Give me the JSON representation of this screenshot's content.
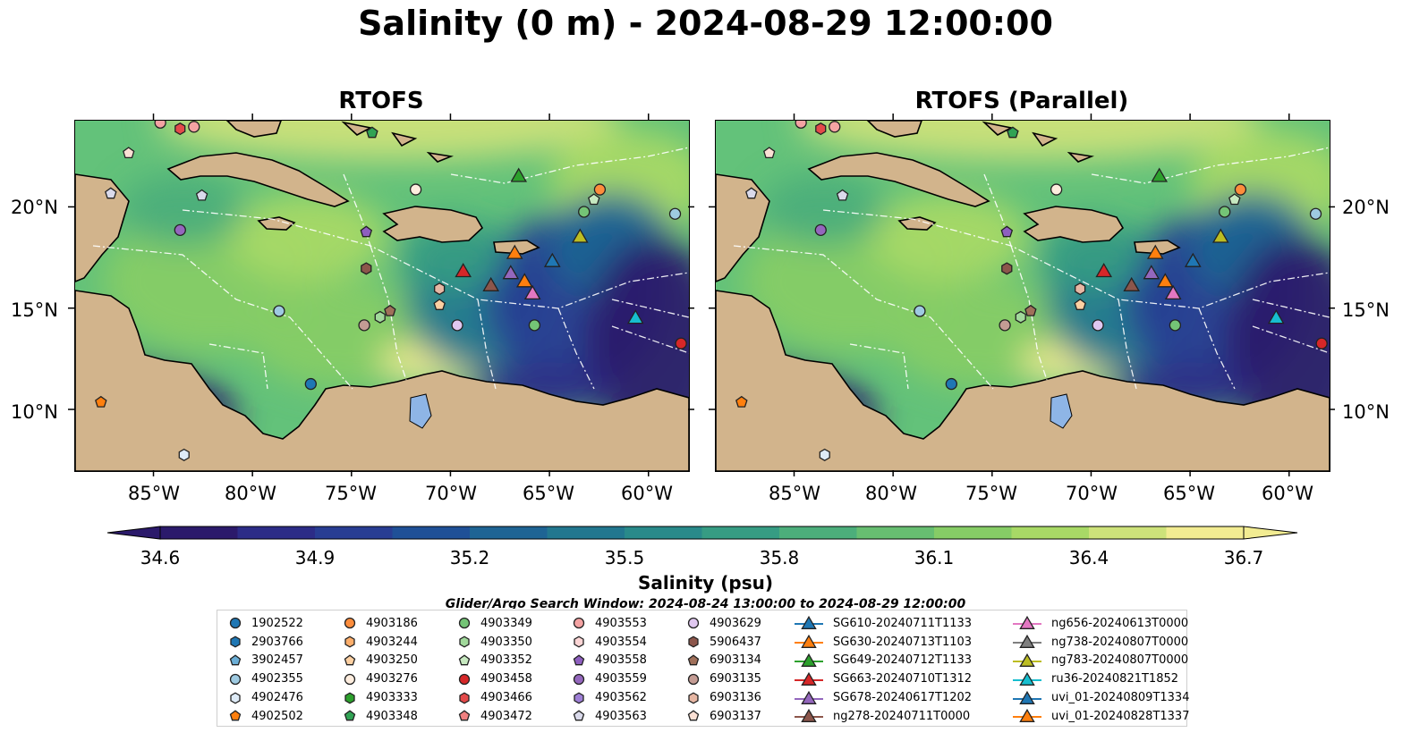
{
  "figure": {
    "title": "Salinity (0 m) - 2024-08-29 12:00:00",
    "panels": [
      {
        "title": "RTOFS"
      },
      {
        "title": "RTOFS (Parallel)"
      }
    ],
    "lon_labels": [
      "85°W",
      "80°W",
      "75°W",
      "70°W",
      "65°W",
      "60°W"
    ],
    "lat_labels": [
      "20°N",
      "15°N",
      "10°N"
    ],
    "extent": {
      "lon_min": -89,
      "lon_max": -58,
      "lat_min": 7,
      "lat_max": 24.3
    }
  },
  "colorbar": {
    "label": "Salinity (psu)",
    "ticks": [
      "34.6",
      "34.9",
      "35.2",
      "35.5",
      "35.8",
      "36.1",
      "36.4",
      "36.7"
    ],
    "vmin": 34.6,
    "vmax": 36.7,
    "extend": "both",
    "colors": [
      "#2b1a6b",
      "#2c2c87",
      "#283d93",
      "#1f5097",
      "#1e6494",
      "#22778f",
      "#298a8a",
      "#369c83",
      "#4cae7b",
      "#67be71",
      "#86cc66",
      "#a8d966",
      "#cde27a",
      "#f2ec92"
    ]
  },
  "search_window": "Glider/Argo Search Window: 2024-08-24 13:00:00 to 2024-08-29 12:00:00",
  "colors": {
    "land": "#d2b48c",
    "low_salinity": "#2b1a6b",
    "high_salinity": "#f2ec92",
    "eez_line": "#ffffff"
  },
  "legend": [
    {
      "label": "1902522",
      "marker": "circle",
      "color": "#1f77b4"
    },
    {
      "label": "2903766",
      "marker": "hexagon",
      "color": "#1f77b4"
    },
    {
      "label": "3902457",
      "marker": "pentagon",
      "color": "#6baed6"
    },
    {
      "label": "4902355",
      "marker": "circle",
      "color": "#9ecae1"
    },
    {
      "label": "4902476",
      "marker": "hexagon",
      "color": "#deebf7"
    },
    {
      "label": "4902502",
      "marker": "pentagon",
      "color": "#ff7f0e"
    },
    {
      "label": "4903186",
      "marker": "circle",
      "color": "#fd8d3c"
    },
    {
      "label": "4903244",
      "marker": "hexagon",
      "color": "#fdae6b"
    },
    {
      "label": "4903250",
      "marker": "pentagon",
      "color": "#fdd0a2"
    },
    {
      "label": "4903276",
      "marker": "circle",
      "color": "#feedde"
    },
    {
      "label": "4903333",
      "marker": "hexagon",
      "color": "#2ca02c"
    },
    {
      "label": "4903348",
      "marker": "pentagon",
      "color": "#31a354"
    },
    {
      "label": "4903349",
      "marker": "circle",
      "color": "#74c476"
    },
    {
      "label": "4903350",
      "marker": "hexagon",
      "color": "#a1d99b"
    },
    {
      "label": "4903352",
      "marker": "pentagon",
      "color": "#c7e9c0"
    },
    {
      "label": "4903458",
      "marker": "circle",
      "color": "#d62728"
    },
    {
      "label": "4903466",
      "marker": "hexagon",
      "color": "#e34a4a"
    },
    {
      "label": "4903472",
      "marker": "pentagon",
      "color": "#f08080"
    },
    {
      "label": "4903553",
      "marker": "circle",
      "color": "#f4a3a3"
    },
    {
      "label": "4903554",
      "marker": "hexagon",
      "color": "#fcd5d5"
    },
    {
      "label": "4903558",
      "marker": "pentagon",
      "color": "#8e5fbf"
    },
    {
      "label": "4903559",
      "marker": "circle",
      "color": "#9467bd"
    },
    {
      "label": "4903562",
      "marker": "hexagon",
      "color": "#9e7fd6"
    },
    {
      "label": "4903563",
      "marker": "pentagon",
      "color": "#dadaeb"
    },
    {
      "label": "4903629",
      "marker": "circle",
      "color": "#e0c8f0"
    },
    {
      "label": "5906437",
      "marker": "hexagon",
      "color": "#8c564b"
    },
    {
      "label": "6903134",
      "marker": "pentagon",
      "color": "#a0705a"
    },
    {
      "label": "6903135",
      "marker": "circle",
      "color": "#c49c94"
    },
    {
      "label": "6903136",
      "marker": "hexagon",
      "color": "#e7b7a4"
    },
    {
      "label": "6903137",
      "marker": "pentagon",
      "color": "#fbe0d4"
    },
    {
      "label": "SG610-20240711T1133",
      "marker": "triangle",
      "color": "#1f77b4"
    },
    {
      "label": "SG630-20240713T1103",
      "marker": "triangle",
      "color": "#ff7f0e"
    },
    {
      "label": "SG649-20240712T1133",
      "marker": "triangle",
      "color": "#2ca02c"
    },
    {
      "label": "SG663-20240710T1312",
      "marker": "triangle",
      "color": "#d62728"
    },
    {
      "label": "SG678-20240617T1202",
      "marker": "triangle",
      "color": "#9467bd"
    },
    {
      "label": "ng278-20240711T0000",
      "marker": "triangle",
      "color": "#8c564b"
    },
    {
      "label": "ng656-20240613T0000",
      "marker": "triangle",
      "color": "#e377c2"
    },
    {
      "label": "ng738-20240807T0000",
      "marker": "triangle",
      "color": "#7f7f7f"
    },
    {
      "label": "ng783-20240807T0000",
      "marker": "triangle",
      "color": "#bcbd22"
    },
    {
      "label": "ru36-20240821T1852",
      "marker": "triangle",
      "color": "#17becf"
    },
    {
      "label": "uvi_01-20240809T1334",
      "marker": "triangle",
      "color": "#1f77b4"
    },
    {
      "label": "uvi_01-20240828T1337",
      "marker": "triangle",
      "color": "#ff7f0e"
    }
  ],
  "markers": [
    {
      "label": "4903553",
      "lon": -84.7,
      "lat": 24.2
    },
    {
      "label": "4903466",
      "lon": -83.7,
      "lat": 23.9
    },
    {
      "label": "4903553",
      "lon": -83.0,
      "lat": 24.0
    },
    {
      "label": "6903137",
      "lon": -86.3,
      "lat": 22.7
    },
    {
      "label": "4903348",
      "lon": -74.0,
      "lat": 23.7
    },
    {
      "label": "4903563",
      "lon": -87.2,
      "lat": 20.7
    },
    {
      "label": "4903563",
      "lon": -82.6,
      "lat": 20.6
    },
    {
      "label": "4903276",
      "lon": -71.8,
      "lat": 20.9
    },
    {
      "label": "4903186",
      "lon": -62.5,
      "lat": 20.9
    },
    {
      "label": "4903352",
      "lon": -62.8,
      "lat": 20.4
    },
    {
      "label": "4903349",
      "lon": -63.3,
      "lat": 19.8
    },
    {
      "label": "4902355",
      "lon": -58.7,
      "lat": 19.7
    },
    {
      "label": "4903559",
      "lon": -83.7,
      "lat": 18.9
    },
    {
      "label": "4903558",
      "lon": -74.3,
      "lat": 18.8
    },
    {
      "label": "5906437",
      "lon": -74.3,
      "lat": 17.0
    },
    {
      "label": "6903136",
      "lon": -70.6,
      "lat": 16.0
    },
    {
      "label": "4903250",
      "lon": -70.6,
      "lat": 15.2
    },
    {
      "label": "6903134",
      "lon": -73.1,
      "lat": 14.9
    },
    {
      "label": "4903350",
      "lon": -73.6,
      "lat": 14.6
    },
    {
      "label": "6903135",
      "lon": -74.4,
      "lat": 14.2
    },
    {
      "label": "4903629",
      "lon": -69.7,
      "lat": 14.2
    },
    {
      "label": "4903349",
      "lon": -65.8,
      "lat": 14.2
    },
    {
      "label": "4902355",
      "lon": -78.7,
      "lat": 14.9
    },
    {
      "label": "1902522",
      "lon": -77.1,
      "lat": 11.3
    },
    {
      "label": "4902502",
      "lon": -87.7,
      "lat": 10.4
    },
    {
      "label": "4902476",
      "lon": -83.5,
      "lat": 7.8
    },
    {
      "label": "4903458",
      "lon": -58.4,
      "lat": 13.3
    },
    {
      "label": "SG649-20240712T1133",
      "lon": -66.6,
      "lat": 21.6
    },
    {
      "label": "ng783-20240807T0000",
      "lon": -63.5,
      "lat": 18.6
    },
    {
      "label": "SG630-20240713T1103",
      "lon": -66.8,
      "lat": 17.8
    },
    {
      "label": "SG663-20240710T1312",
      "lon": -69.4,
      "lat": 16.9
    },
    {
      "label": "SG678-20240617T1202",
      "lon": -67.0,
      "lat": 16.8
    },
    {
      "label": "uvi_01-20240828T1337",
      "lon": -66.3,
      "lat": 16.4
    },
    {
      "label": "ng278-20240711T0000",
      "lon": -68.0,
      "lat": 16.2
    },
    {
      "label": "ng656-20240613T0000",
      "lon": -65.9,
      "lat": 15.8
    },
    {
      "label": "SG610-20240711T1133",
      "lon": -64.9,
      "lat": 17.4
    },
    {
      "label": "ru36-20240821T1852",
      "lon": -60.7,
      "lat": 14.6
    }
  ]
}
